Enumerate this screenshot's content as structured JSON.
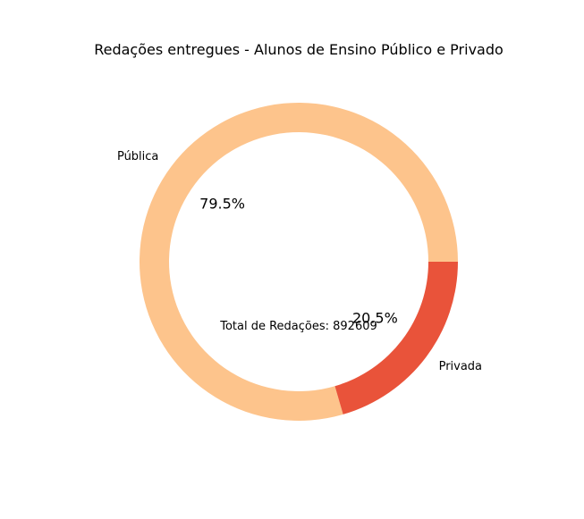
{
  "chart_data": {
    "type": "pie",
    "title": "Redações entregues - Alunos de Ensino Público e Privado",
    "categories": [
      "Pública",
      "Privada"
    ],
    "values": [
      79.5,
      20.5
    ],
    "value_labels": [
      "79.5%",
      "20.5%"
    ],
    "colors": [
      "#fdc48c",
      "#e9533a"
    ],
    "donut": true,
    "center_text": "Total de Redações: 892609"
  }
}
